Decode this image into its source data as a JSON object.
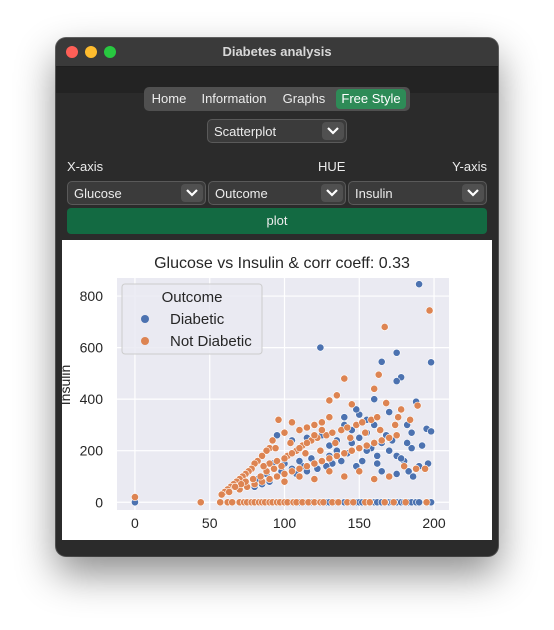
{
  "window": {
    "title": "Diabetes analysis"
  },
  "tabs": [
    {
      "label": "Home",
      "active": false
    },
    {
      "label": "Information",
      "active": false
    },
    {
      "label": "Graphs",
      "active": false
    },
    {
      "label": "Free Style",
      "active": true
    }
  ],
  "plot_type": {
    "value": "Scatterplot"
  },
  "controls": {
    "x_label": "X-axis",
    "hue_label": "HUE",
    "y_label": "Y-axis",
    "x_value": "Glucose",
    "hue_value": "Outcome",
    "y_value": "Insulin",
    "plot_button": "plot"
  },
  "chart_data": {
    "type": "scatter",
    "title": "Glucose vs Insulin & corr coeff: 0.33",
    "xlabel": "",
    "ylabel": "Insulin",
    "xlim": [
      -12,
      210
    ],
    "ylim": [
      -30,
      870
    ],
    "xticks": [
      "0",
      "50",
      "100",
      "150",
      "200"
    ],
    "xtick_values": [
      0,
      50,
      100,
      150,
      200
    ],
    "yticks": [
      "0",
      "200",
      "400",
      "600",
      "800"
    ],
    "ytick_values": [
      0,
      200,
      400,
      600,
      800
    ],
    "legend": {
      "title": "Outcome",
      "placement": "top-left",
      "entries": [
        "Diabetic",
        "Not Diabetic"
      ]
    },
    "grid": true,
    "colors": {
      "Diabetic": "#4c72b0",
      "Not Diabetic": "#dd8452",
      "plot_bg": "#eaeaf2"
    },
    "series": [
      {
        "name": "Diabetic",
        "points": [
          [
            0,
            0
          ],
          [
            100,
            0
          ],
          [
            105,
            0
          ],
          [
            110,
            0
          ],
          [
            115,
            0
          ],
          [
            118,
            0
          ],
          [
            120,
            0
          ],
          [
            125,
            0
          ],
          [
            128,
            0
          ],
          [
            130,
            0
          ],
          [
            135,
            0
          ],
          [
            140,
            0
          ],
          [
            145,
            0
          ],
          [
            148,
            0
          ],
          [
            150,
            0
          ],
          [
            152,
            0
          ],
          [
            155,
            0
          ],
          [
            158,
            0
          ],
          [
            160,
            0
          ],
          [
            162,
            0
          ],
          [
            165,
            0
          ],
          [
            168,
            0
          ],
          [
            170,
            0
          ],
          [
            172,
            0
          ],
          [
            175,
            0
          ],
          [
            178,
            0
          ],
          [
            180,
            0
          ],
          [
            183,
            0
          ],
          [
            185,
            0
          ],
          [
            188,
            0
          ],
          [
            190,
            0
          ],
          [
            195,
            0
          ],
          [
            198,
            0
          ],
          [
            190,
            846
          ],
          [
            124,
            600
          ],
          [
            175,
            580
          ],
          [
            165,
            545
          ],
          [
            198,
            543
          ],
          [
            178,
            485
          ],
          [
            175,
            470
          ],
          [
            188,
            390
          ],
          [
            170,
            350
          ],
          [
            195,
            285
          ],
          [
            198,
            275
          ],
          [
            185,
            270
          ],
          [
            182,
            300
          ],
          [
            180,
            160
          ],
          [
            190,
            140
          ],
          [
            196,
            150
          ],
          [
            160,
            300
          ],
          [
            155,
            320
          ],
          [
            150,
            250
          ],
          [
            145,
            280
          ],
          [
            158,
            210
          ],
          [
            165,
            230
          ],
          [
            170,
            200
          ],
          [
            175,
            180
          ],
          [
            178,
            170
          ],
          [
            185,
            210
          ],
          [
            162,
            180
          ],
          [
            152,
            160
          ],
          [
            148,
            140
          ],
          [
            142,
            190
          ],
          [
            138,
            160
          ],
          [
            135,
            200
          ],
          [
            132,
            150
          ],
          [
            130,
            180
          ],
          [
            128,
            140
          ],
          [
            125,
            160
          ],
          [
            122,
            130
          ],
          [
            120,
            150
          ],
          [
            118,
            170
          ],
          [
            115,
            120
          ],
          [
            112,
            140
          ],
          [
            110,
            160
          ],
          [
            108,
            110
          ],
          [
            105,
            130
          ],
          [
            100,
            150
          ],
          [
            98,
            120
          ],
          [
            95,
            100
          ],
          [
            92,
            150
          ],
          [
            90,
            80
          ],
          [
            88,
            110
          ],
          [
            85,
            70
          ],
          [
            82,
            90
          ],
          [
            80,
            60
          ],
          [
            125,
            260
          ],
          [
            130,
            220
          ],
          [
            135,
            240
          ],
          [
            140,
            300
          ],
          [
            145,
            230
          ],
          [
            150,
            340
          ],
          [
            155,
            270
          ],
          [
            160,
            400
          ],
          [
            168,
            260
          ],
          [
            172,
            240
          ],
          [
            182,
            230
          ],
          [
            192,
            220
          ],
          [
            95,
            260
          ],
          [
            105,
            240
          ],
          [
            115,
            250
          ],
          [
            140,
            330
          ],
          [
            148,
            360
          ],
          [
            155,
            200
          ],
          [
            162,
            150
          ],
          [
            165,
            120
          ],
          [
            175,
            110
          ],
          [
            183,
            120
          ],
          [
            186,
            100
          ]
        ]
      },
      {
        "name": "Not Diabetic",
        "points": [
          [
            0,
            20
          ],
          [
            44,
            0
          ],
          [
            57,
            0
          ],
          [
            62,
            0
          ],
          [
            65,
            0
          ],
          [
            70,
            0
          ],
          [
            73,
            0
          ],
          [
            75,
            0
          ],
          [
            78,
            0
          ],
          [
            80,
            0
          ],
          [
            83,
            0
          ],
          [
            85,
            0
          ],
          [
            87,
            0
          ],
          [
            90,
            0
          ],
          [
            92,
            0
          ],
          [
            95,
            0
          ],
          [
            97,
            0
          ],
          [
            100,
            0
          ],
          [
            102,
            0
          ],
          [
            106,
            0
          ],
          [
            108,
            0
          ],
          [
            112,
            0
          ],
          [
            116,
            0
          ],
          [
            120,
            0
          ],
          [
            124,
            0
          ],
          [
            126,
            0
          ],
          [
            132,
            0
          ],
          [
            136,
            0
          ],
          [
            142,
            0
          ],
          [
            146,
            0
          ],
          [
            154,
            0
          ],
          [
            157,
            0
          ],
          [
            167,
            0
          ],
          [
            173,
            0
          ],
          [
            181,
            0
          ],
          [
            195,
            0
          ],
          [
            197,
            744
          ],
          [
            167,
            680
          ],
          [
            163,
            495
          ],
          [
            160,
            440
          ],
          [
            135,
            415
          ],
          [
            140,
            480
          ],
          [
            130,
            395
          ],
          [
            145,
            380
          ],
          [
            168,
            385
          ],
          [
            178,
            360
          ],
          [
            189,
            375
          ],
          [
            130,
            330
          ],
          [
            125,
            310
          ],
          [
            120,
            300
          ],
          [
            115,
            290
          ],
          [
            110,
            280
          ],
          [
            105,
            310
          ],
          [
            100,
            270
          ],
          [
            96,
            320
          ],
          [
            92,
            240
          ],
          [
            90,
            210
          ],
          [
            88,
            200
          ],
          [
            85,
            180
          ],
          [
            82,
            160
          ],
          [
            80,
            150
          ],
          [
            78,
            130
          ],
          [
            76,
            120
          ],
          [
            74,
            110
          ],
          [
            72,
            100
          ],
          [
            70,
            90
          ],
          [
            68,
            80
          ],
          [
            66,
            70
          ],
          [
            64,
            60
          ],
          [
            62,
            50
          ],
          [
            60,
            40
          ],
          [
            58,
            30
          ],
          [
            70,
            50
          ],
          [
            75,
            60
          ],
          [
            80,
            70
          ],
          [
            85,
            80
          ],
          [
            90,
            90
          ],
          [
            95,
            100
          ],
          [
            100,
            110
          ],
          [
            105,
            120
          ],
          [
            110,
            130
          ],
          [
            115,
            140
          ],
          [
            120,
            150
          ],
          [
            125,
            160
          ],
          [
            130,
            170
          ],
          [
            135,
            180
          ],
          [
            140,
            190
          ],
          [
            145,
            200
          ],
          [
            150,
            210
          ],
          [
            155,
            220
          ],
          [
            160,
            230
          ],
          [
            165,
            240
          ],
          [
            170,
            250
          ],
          [
            175,
            260
          ],
          [
            102,
            180
          ],
          [
            108,
            200
          ],
          [
            112,
            220
          ],
          [
            118,
            240
          ],
          [
            122,
            250
          ],
          [
            128,
            260
          ],
          [
            132,
            270
          ],
          [
            138,
            280
          ],
          [
            142,
            290
          ],
          [
            148,
            300
          ],
          [
            152,
            310
          ],
          [
            158,
            320
          ],
          [
            162,
            330
          ],
          [
            90,
            150
          ],
          [
            95,
            160
          ],
          [
            100,
            170
          ],
          [
            105,
            190
          ],
          [
            110,
            210
          ],
          [
            115,
            230
          ],
          [
            120,
            260
          ],
          [
            125,
            280
          ],
          [
            98,
            140
          ],
          [
            93,
            130
          ],
          [
            88,
            120
          ],
          [
            84,
            100
          ],
          [
            79,
            90
          ],
          [
            74,
            80
          ],
          [
            71,
            70
          ],
          [
            67,
            60
          ],
          [
            63,
            40
          ],
          [
            86,
            140
          ],
          [
            94,
            210
          ],
          [
            104,
            230
          ],
          [
            114,
            190
          ],
          [
            124,
            200
          ],
          [
            134,
            230
          ],
          [
            144,
            250
          ],
          [
            154,
            270
          ],
          [
            164,
            280
          ],
          [
            174,
            300
          ],
          [
            184,
            320
          ],
          [
            194,
            130
          ],
          [
            170,
            100
          ],
          [
            160,
            90
          ],
          [
            150,
            120
          ],
          [
            140,
            100
          ],
          [
            130,
            120
          ],
          [
            120,
            90
          ],
          [
            110,
            100
          ],
          [
            100,
            80
          ],
          [
            180,
            140
          ],
          [
            188,
            130
          ],
          [
            176,
            330
          ]
        ]
      }
    ]
  }
}
